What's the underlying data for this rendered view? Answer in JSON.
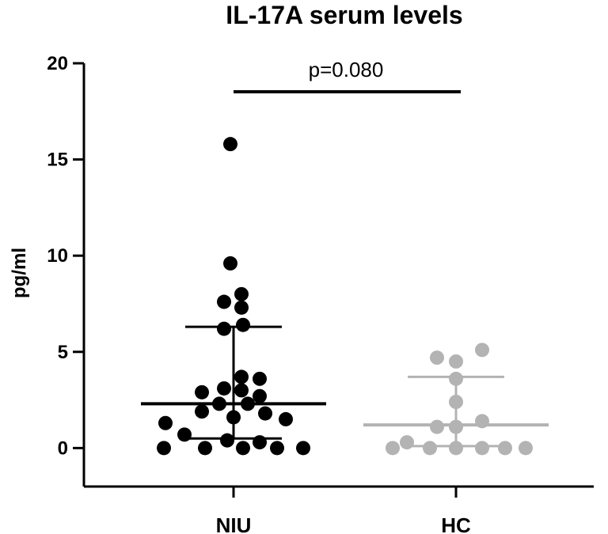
{
  "chart_data": {
    "type": "scatter",
    "title": "IL-17A serum levels",
    "xlabel": "",
    "ylabel": "pg/ml",
    "ylim": [
      -2,
      20
    ],
    "yticks": [
      0,
      5,
      10,
      15,
      20
    ],
    "categories": [
      "NIU",
      "HC"
    ],
    "annotation": "p=0.080",
    "series": [
      {
        "name": "NIU",
        "color": "#000000",
        "median": 2.3,
        "iqr": [
          0.5,
          6.3
        ],
        "points": [
          {
            "x": -0.88,
            "y": 0.0
          },
          {
            "x": -0.36,
            "y": 0.0
          },
          {
            "x": 0.12,
            "y": 0.0
          },
          {
            "x": 0.55,
            "y": 0.0
          },
          {
            "x": 0.88,
            "y": 0.0
          },
          {
            "x": -0.86,
            "y": 1.3
          },
          {
            "x": -0.62,
            "y": 0.7
          },
          {
            "x": -0.08,
            "y": 0.4
          },
          {
            "x": 0.33,
            "y": 0.3
          },
          {
            "x": 0.66,
            "y": 1.5
          },
          {
            "x": -0.4,
            "y": 1.9
          },
          {
            "x": 0.0,
            "y": 1.6
          },
          {
            "x": 0.4,
            "y": 1.8
          },
          {
            "x": -0.18,
            "y": 2.3
          },
          {
            "x": 0.18,
            "y": 2.3
          },
          {
            "x": -0.4,
            "y": 2.9
          },
          {
            "x": -0.12,
            "y": 3.1
          },
          {
            "x": 0.1,
            "y": 3.0
          },
          {
            "x": 0.33,
            "y": 2.7
          },
          {
            "x": 0.1,
            "y": 3.7
          },
          {
            "x": 0.33,
            "y": 3.6
          },
          {
            "x": 0.12,
            "y": 6.4
          },
          {
            "x": -0.12,
            "y": 6.2
          },
          {
            "x": 0.1,
            "y": 7.3
          },
          {
            "x": -0.12,
            "y": 7.6
          },
          {
            "x": 0.1,
            "y": 8.0
          },
          {
            "x": -0.04,
            "y": 9.6
          },
          {
            "x": -0.04,
            "y": 15.8
          }
        ]
      },
      {
        "name": "HC",
        "color": "#b3b3b3",
        "median": 1.2,
        "iqr": [
          0.1,
          3.7
        ],
        "points": [
          {
            "x": -0.8,
            "y": 0.0
          },
          {
            "x": -0.33,
            "y": 0.0
          },
          {
            "x": 0.0,
            "y": 0.0
          },
          {
            "x": 0.33,
            "y": 0.0
          },
          {
            "x": 0.62,
            "y": 0.0
          },
          {
            "x": 0.88,
            "y": 0.0
          },
          {
            "x": -0.62,
            "y": 0.3
          },
          {
            "x": -0.24,
            "y": 1.1
          },
          {
            "x": 0.0,
            "y": 1.1
          },
          {
            "x": 0.33,
            "y": 1.4
          },
          {
            "x": 0.0,
            "y": 2.4
          },
          {
            "x": 0.0,
            "y": 3.6
          },
          {
            "x": -0.24,
            "y": 4.7
          },
          {
            "x": 0.0,
            "y": 4.5
          },
          {
            "x": 0.33,
            "y": 5.1
          }
        ]
      }
    ]
  }
}
